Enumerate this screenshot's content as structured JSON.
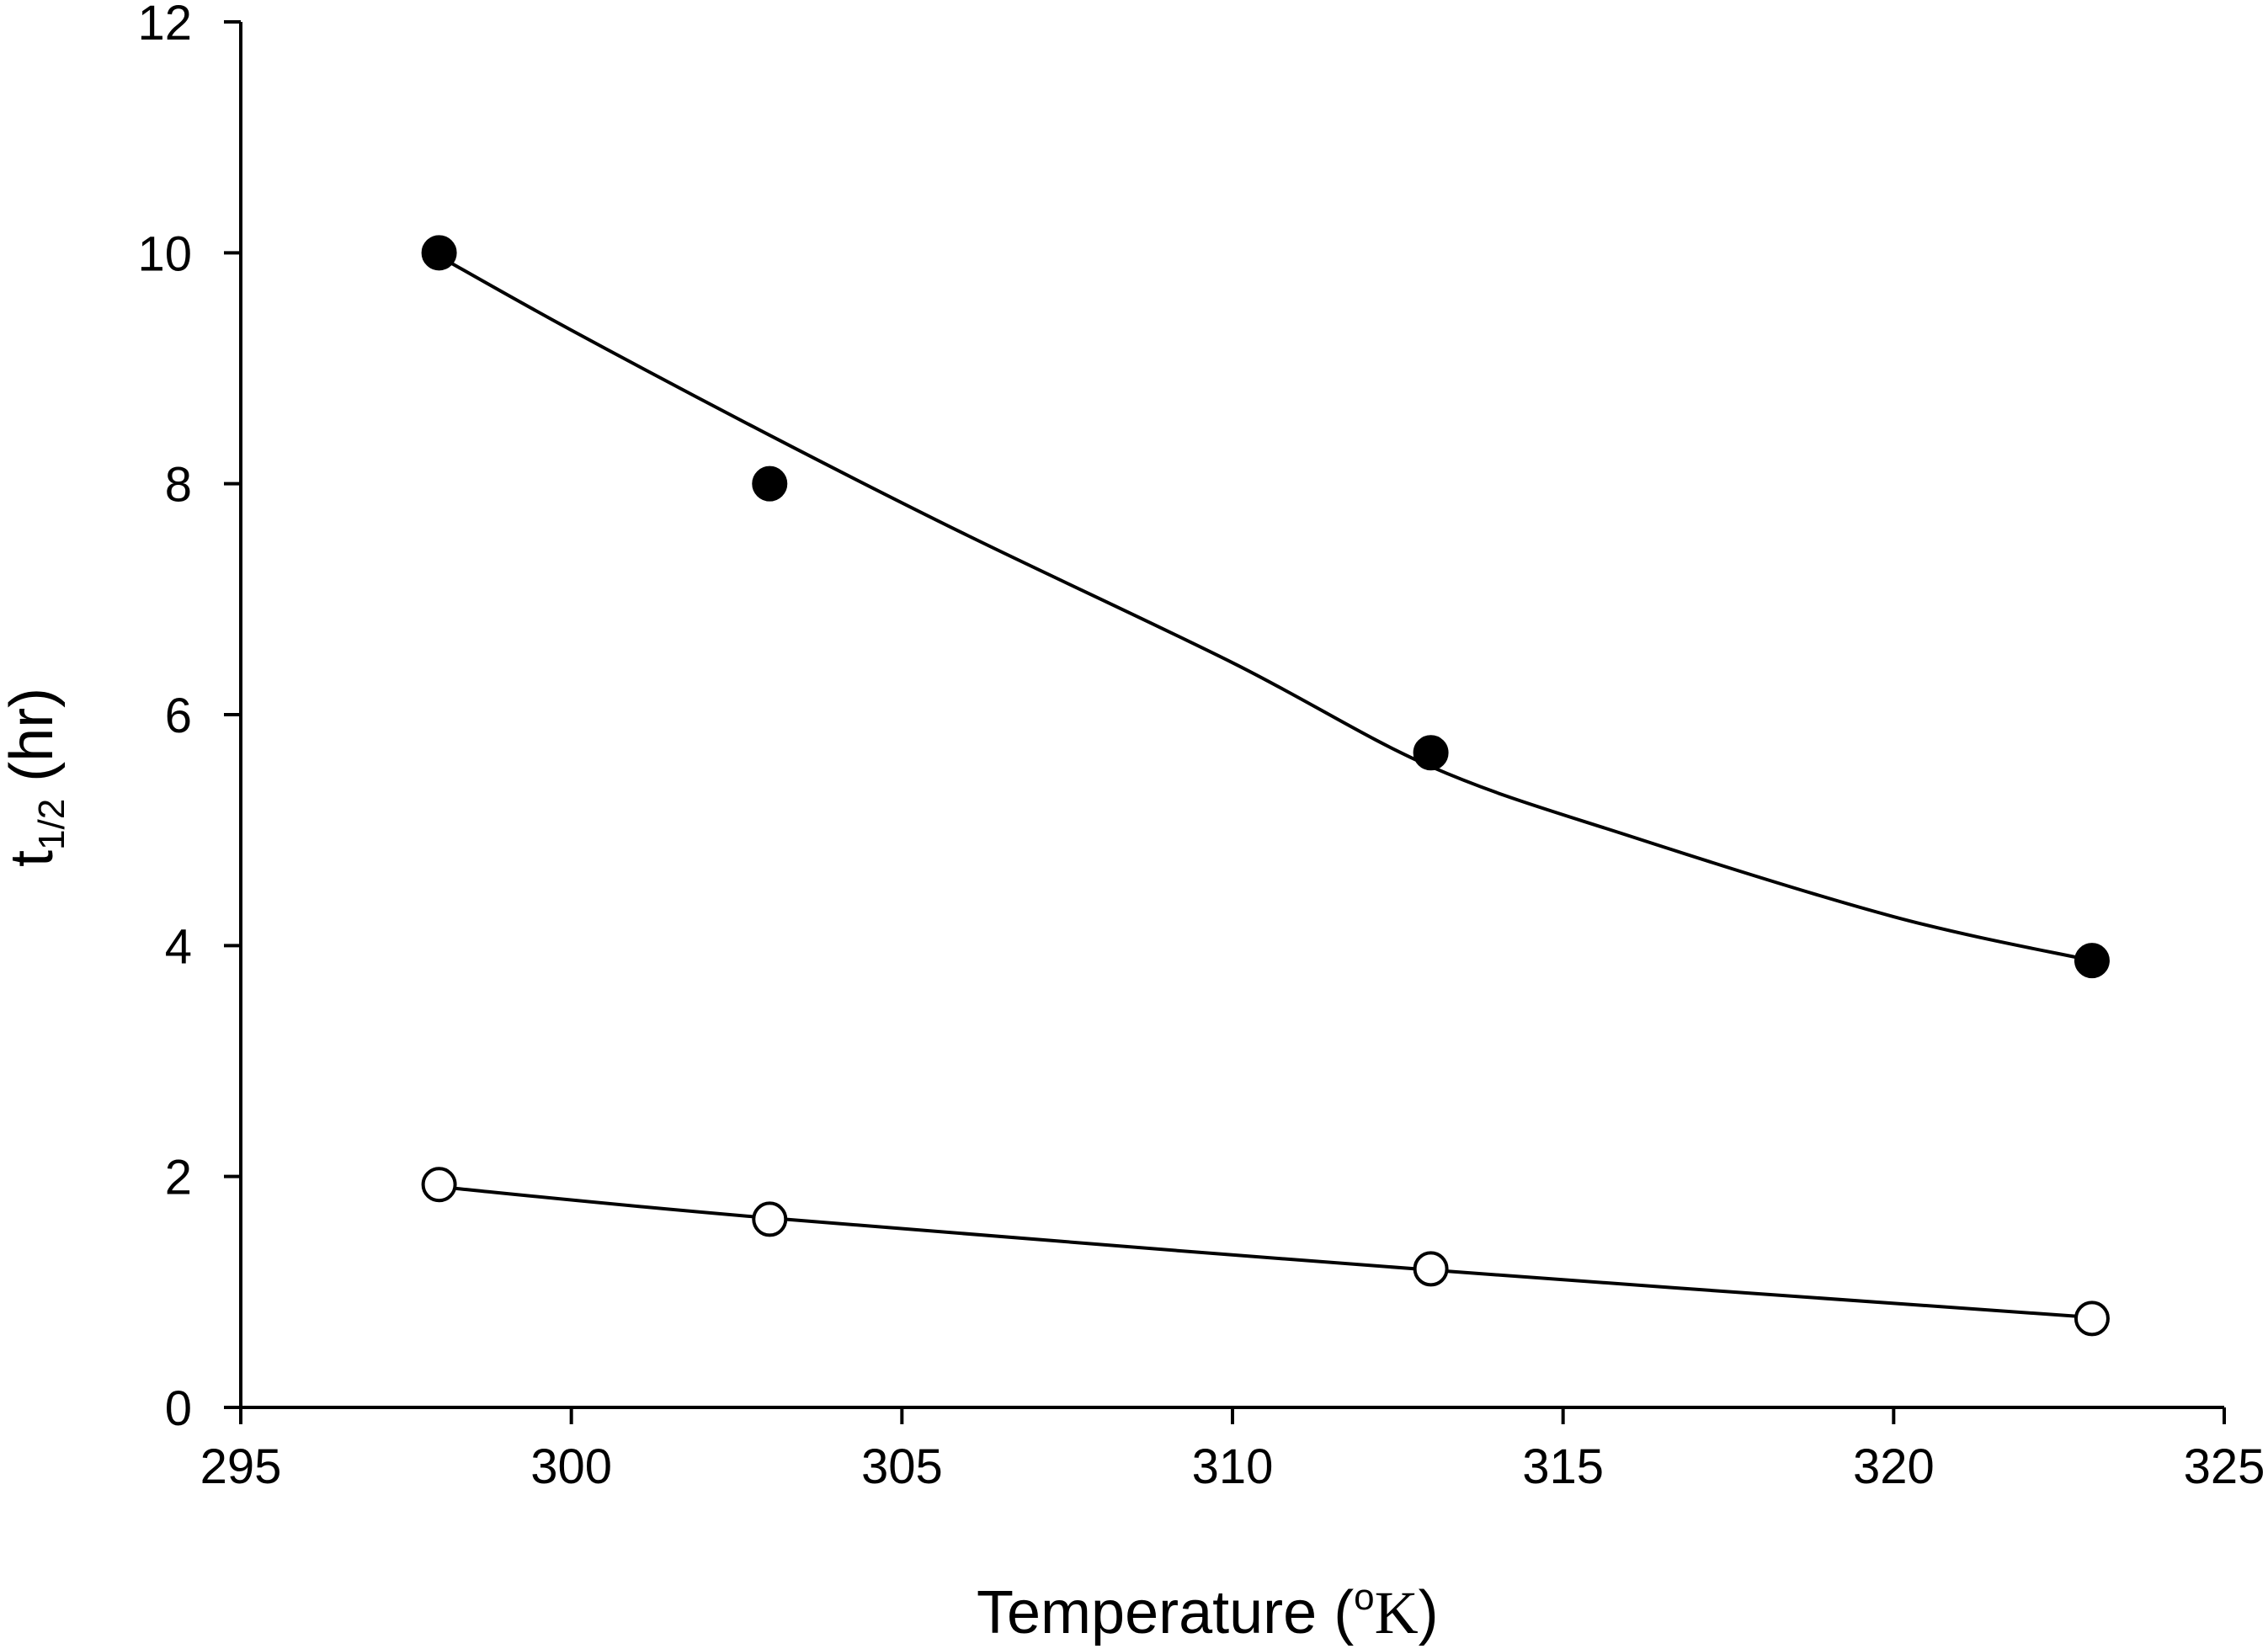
{
  "chart_data": {
    "type": "scatter",
    "title": "",
    "xlabel": {
      "prefix": "Temperature (",
      "superscript": "o",
      "unit": "K",
      "suffix": ")"
    },
    "ylabel": {
      "main": "t",
      "subscript": "1/2",
      "suffix": " (hr)"
    },
    "xlim": [
      295,
      325
    ],
    "ylim": [
      0,
      12
    ],
    "x_ticks": [
      295,
      300,
      305,
      310,
      315,
      320,
      325
    ],
    "x_tick_labels": [
      "295",
      "300",
      "305",
      "310",
      "315",
      "320",
      "325"
    ],
    "y_ticks": [
      0,
      2,
      4,
      6,
      8,
      10,
      12
    ],
    "y_tick_labels": [
      "0",
      "2",
      "4",
      "6",
      "8",
      "10",
      "12"
    ],
    "grid": false,
    "legend": "none",
    "series": [
      {
        "marker": "filled-circle",
        "color": "#000000",
        "x": [
          298,
          303,
          313,
          323
        ],
        "y": [
          10.0,
          8.0,
          5.67,
          3.87
        ],
        "fit_curve": {
          "x": [
            298,
            300,
            303,
            306,
            310,
            313,
            316,
            320,
            323
          ],
          "y": [
            9.97,
            9.33,
            8.42,
            7.55,
            6.45,
            5.55,
            4.95,
            4.25,
            3.87
          ]
        }
      },
      {
        "marker": "open-circle",
        "color": "#000000",
        "x": [
          298,
          303,
          313,
          323
        ],
        "y": [
          1.93,
          1.63,
          1.2,
          0.77
        ],
        "fit_curve": {
          "x": [
            298,
            303,
            313,
            323
          ],
          "y": [
            1.91,
            1.64,
            1.19,
            0.78
          ]
        }
      }
    ]
  }
}
